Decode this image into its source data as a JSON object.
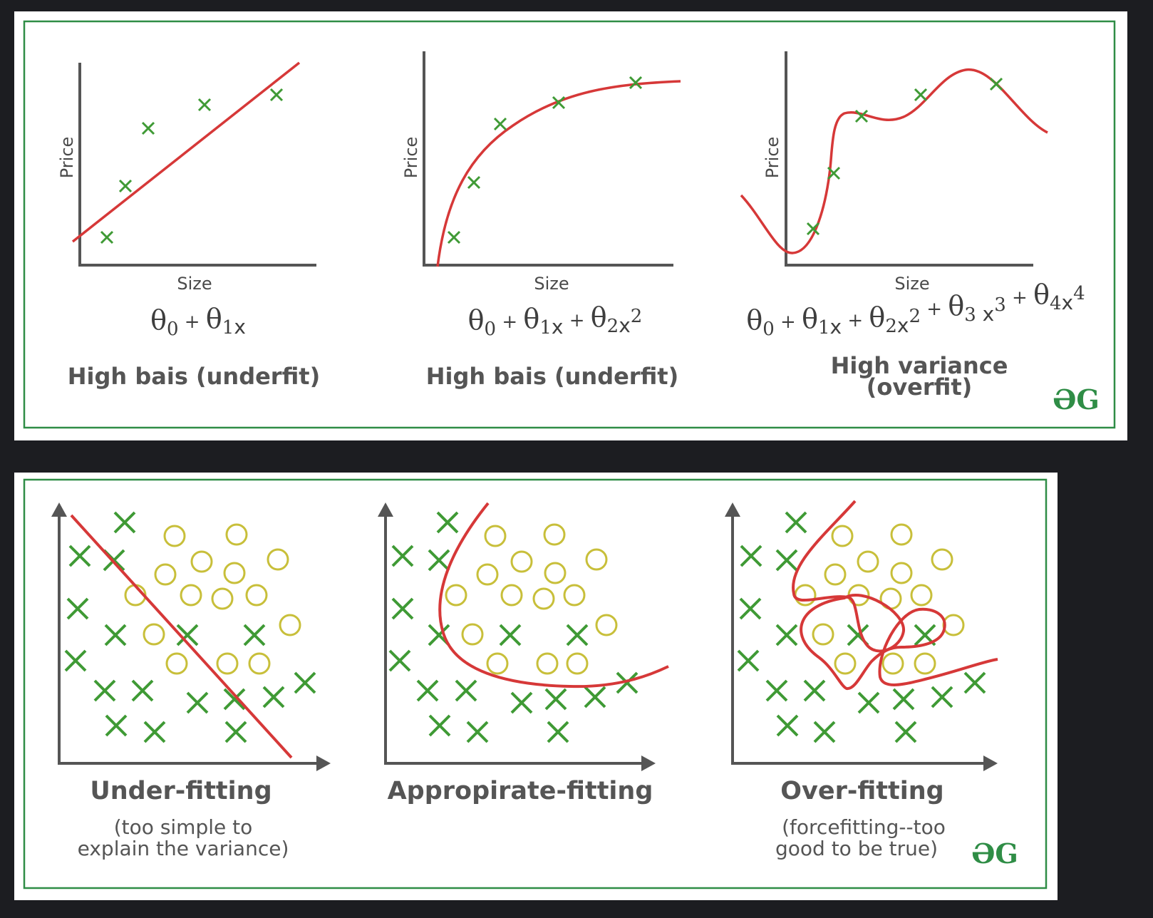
{
  "top": {
    "panels": [
      {
        "ylabel": "Price",
        "xlabel": "Size",
        "formula": [
          "θ",
          "0",
          " + ",
          "θ",
          "1",
          "x"
        ],
        "title": "High bais (underfit)"
      },
      {
        "ylabel": "Price",
        "xlabel": "Size",
        "formula": [
          "θ",
          "0",
          " + ",
          "θ",
          "1",
          "x",
          "  + ",
          "θ",
          "2",
          "x",
          "2"
        ],
        "title": "High bais (underfit)"
      },
      {
        "ylabel": "Price",
        "xlabel": "Size",
        "formula": [
          "θ",
          "0",
          " + ",
          "θ",
          "1",
          "x",
          "  + ",
          "θ",
          "2",
          "x",
          "2",
          "  + ",
          "θ",
          "3",
          " x",
          "3",
          " + ",
          "θ",
          "4",
          "x",
          "4"
        ],
        "title_line1": "High variance",
        "title_line2": "(overfit)"
      }
    ],
    "logo": "ƏG"
  },
  "bottom": {
    "panels": [
      {
        "title": "Under-fitting",
        "sub_line1": "(too simple to",
        "sub_line2": "explain the variance)"
      },
      {
        "title": "Appropirate-fitting"
      },
      {
        "title": "Over-fitting",
        "sub_line1": "(forcefitting--too",
        "sub_line2": "good to be true)"
      }
    ],
    "logo": "ƏG"
  },
  "colors": {
    "background": "#1c1d21",
    "card": "#ffffff",
    "border": "#2f8d46",
    "curve": "#d63838",
    "cross": "#3f9a35",
    "circle": "#c8bf3a",
    "axis": "#555555"
  }
}
